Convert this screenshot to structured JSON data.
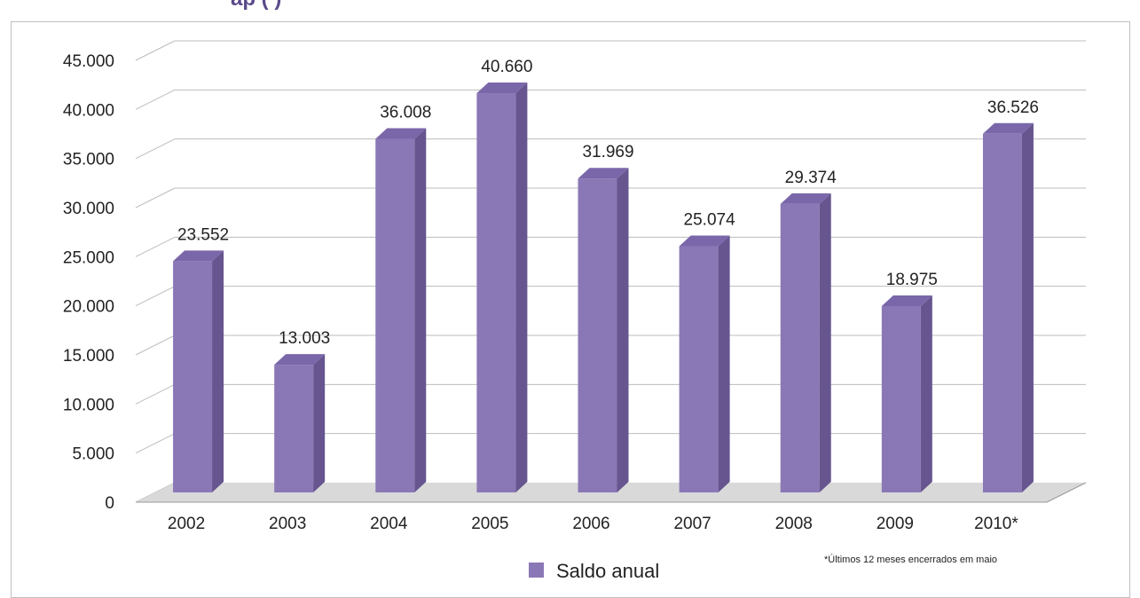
{
  "chart_data": {
    "type": "bar",
    "categories": [
      "2002",
      "2003",
      "2004",
      "2005",
      "2006",
      "2007",
      "2008",
      "2009",
      "2010*"
    ],
    "series": [
      {
        "name": "Saldo anual",
        "values": [
          23552,
          13003,
          36008,
          40660,
          31969,
          25074,
          29374,
          18975,
          36526
        ],
        "labels": [
          "23.552",
          "13.003",
          "36.008",
          "40.660",
          "31.969",
          "25.074",
          "29.374",
          "18.975",
          "36.526"
        ],
        "color": "#8a78b6"
      }
    ],
    "yticks": [
      "0",
      "5.000",
      "10.000",
      "15.000",
      "20.000",
      "25.000",
      "30.000",
      "35.000",
      "40.000",
      "45.000"
    ],
    "ylim": [
      0,
      45000
    ],
    "grid": true,
    "legend": "bottom",
    "footnote": "*Últimos 12 meses encerrados em maio",
    "colors": {
      "bar_front": "#8a78b6",
      "bar_side": "#66558f",
      "bar_top": "#7a67aa",
      "grid": "#bdbdbd",
      "floor": "#d9d9d9"
    }
  }
}
